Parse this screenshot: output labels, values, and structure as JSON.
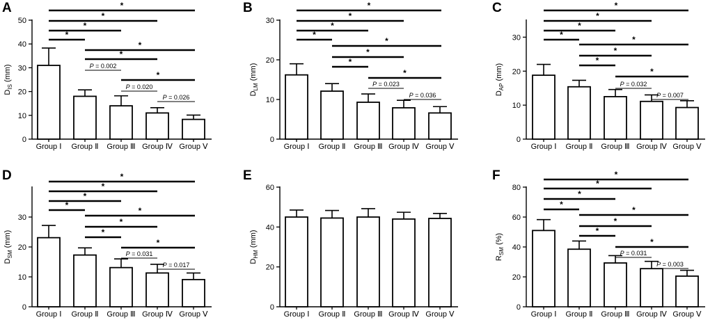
{
  "categories": [
    "Group Ⅰ",
    "Group Ⅱ",
    "Group Ⅲ",
    "Group Ⅳ",
    "Group Ⅴ"
  ],
  "chart_data": [
    {
      "type": "bar",
      "panel_label": "A",
      "ylabel_main": "D",
      "ylabel_sub": "IS",
      "ylabel_unit": " (mm)",
      "ylim": [
        0,
        50
      ],
      "ticks": [
        0,
        10,
        20,
        30,
        40,
        50
      ],
      "values": [
        31,
        18,
        14,
        11,
        8.3
      ],
      "errors": [
        7.3,
        2.7,
        4.2,
        2.2,
        1.8
      ],
      "comparisons": [
        {
          "from": 0,
          "to": 4,
          "label": "*",
          "bold": true
        },
        {
          "from": 0,
          "to": 3,
          "label": "*",
          "bold": true
        },
        {
          "from": 0,
          "to": 2,
          "label": "*",
          "bold": true
        },
        {
          "from": 0,
          "to": 1,
          "label": "*",
          "bold": true
        },
        {
          "from": 1,
          "to": 4,
          "label": "*",
          "bold": true
        },
        {
          "from": 1,
          "to": 3,
          "label": "*",
          "bold": true
        },
        {
          "from": 1,
          "to": 2,
          "label": "P = 0.002",
          "bold": false
        },
        {
          "from": 2,
          "to": 4,
          "label": "*",
          "bold": true
        },
        {
          "from": 2,
          "to": 3,
          "label": "P = 0.020",
          "bold": false
        },
        {
          "from": 3,
          "to": 4,
          "label": "P = 0.026",
          "bold": false
        }
      ]
    },
    {
      "type": "bar",
      "panel_label": "B",
      "ylabel_main": "D",
      "ylabel_sub": "LM",
      "ylabel_unit": " (mm)",
      "ylim": [
        0,
        30
      ],
      "ticks": [
        0,
        10,
        20,
        30
      ],
      "values": [
        16.2,
        12.1,
        9.3,
        7.9,
        6.6
      ],
      "errors": [
        2.8,
        1.9,
        2.1,
        1.9,
        1.6
      ],
      "comparisons": [
        {
          "from": 0,
          "to": 4,
          "label": "*",
          "bold": true
        },
        {
          "from": 0,
          "to": 3,
          "label": "*",
          "bold": true
        },
        {
          "from": 0,
          "to": 2,
          "label": "*",
          "bold": true
        },
        {
          "from": 0,
          "to": 1,
          "label": "*",
          "bold": true
        },
        {
          "from": 1,
          "to": 4,
          "label": "*",
          "bold": true
        },
        {
          "from": 1,
          "to": 3,
          "label": "*",
          "bold": true
        },
        {
          "from": 1,
          "to": 2,
          "label": "*",
          "bold": true
        },
        {
          "from": 2,
          "to": 4,
          "label": "*",
          "bold": true
        },
        {
          "from": 2,
          "to": 3,
          "label": "P = 0.023",
          "bold": false
        },
        {
          "from": 3,
          "to": 4,
          "label": "P = 0.036",
          "bold": false
        }
      ]
    },
    {
      "type": "bar",
      "panel_label": "C",
      "ylabel_main": "D",
      "ylabel_sub": "AP",
      "ylabel_unit": " (mm)",
      "ylim": [
        0,
        35
      ],
      "ticks": [
        0,
        10,
        20,
        30
      ],
      "values": [
        18.8,
        15.4,
        12.5,
        11.1,
        9.3
      ],
      "errors": [
        3.2,
        1.9,
        2.1,
        1.9,
        2
      ],
      "comparisons": [
        {
          "from": 0,
          "to": 4,
          "label": "*",
          "bold": true
        },
        {
          "from": 0,
          "to": 3,
          "label": "*",
          "bold": true
        },
        {
          "from": 0,
          "to": 2,
          "label": "*",
          "bold": true
        },
        {
          "from": 0,
          "to": 1,
          "label": "*",
          "bold": true
        },
        {
          "from": 1,
          "to": 4,
          "label": "*",
          "bold": true
        },
        {
          "from": 1,
          "to": 3,
          "label": "*",
          "bold": true
        },
        {
          "from": 1,
          "to": 2,
          "label": "*",
          "bold": true
        },
        {
          "from": 2,
          "to": 4,
          "label": "*",
          "bold": true
        },
        {
          "from": 2,
          "to": 3,
          "label": "P = 0.032",
          "bold": false
        },
        {
          "from": 3,
          "to": 4,
          "label": "P = 0.007",
          "bold": false
        }
      ]
    },
    {
      "type": "bar",
      "panel_label": "D",
      "ylabel_main": "D",
      "ylabel_sub": "SM",
      "ylabel_unit": " (mm)",
      "ylim": [
        0,
        40
      ],
      "ticks": [
        0,
        10,
        20,
        30
      ],
      "values": [
        23.1,
        17.3,
        13.1,
        11.3,
        9.1
      ],
      "errors": [
        4.1,
        2.4,
        2.9,
        2.9,
        2.2
      ],
      "comparisons": [
        {
          "from": 0,
          "to": 4,
          "label": "*",
          "bold": true
        },
        {
          "from": 0,
          "to": 3,
          "label": "*",
          "bold": true
        },
        {
          "from": 0,
          "to": 2,
          "label": "*",
          "bold": true
        },
        {
          "from": 0,
          "to": 1,
          "label": "*",
          "bold": true
        },
        {
          "from": 1,
          "to": 4,
          "label": "*",
          "bold": true
        },
        {
          "from": 1,
          "to": 3,
          "label": "*",
          "bold": true
        },
        {
          "from": 1,
          "to": 2,
          "label": "*",
          "bold": true
        },
        {
          "from": 2,
          "to": 4,
          "label": "*",
          "bold": true
        },
        {
          "from": 2,
          "to": 3,
          "label": "P = 0.031",
          "bold": false
        },
        {
          "from": 3,
          "to": 4,
          "label": "P = 0.017",
          "bold": false
        }
      ]
    },
    {
      "type": "bar",
      "panel_label": "E",
      "ylabel_main": "D",
      "ylabel_sub": "HM",
      "ylabel_unit": " (mm)",
      "ylim": [
        0,
        60
      ],
      "ticks": [
        0,
        20,
        40,
        60
      ],
      "values": [
        45,
        44.5,
        45,
        44,
        44.3
      ],
      "errors": [
        3.5,
        3.8,
        4.2,
        3.4,
        2.5
      ],
      "comparisons": []
    },
    {
      "type": "bar",
      "panel_label": "F",
      "ylabel_main": "R",
      "ylabel_sub": "SM",
      "ylabel_unit": " (%)",
      "ylim": [
        0,
        80
      ],
      "ticks": [
        0,
        20,
        40,
        60,
        80
      ],
      "values": [
        51,
        38.5,
        29.3,
        25.5,
        20.5
      ],
      "errors": [
        7.3,
        5.5,
        4.9,
        4.9,
        3.9
      ],
      "comparisons": [
        {
          "from": 0,
          "to": 4,
          "label": "*",
          "bold": true
        },
        {
          "from": 0,
          "to": 3,
          "label": "*",
          "bold": true
        },
        {
          "from": 0,
          "to": 2,
          "label": "*",
          "bold": true
        },
        {
          "from": 0,
          "to": 1,
          "label": "*",
          "bold": true
        },
        {
          "from": 1,
          "to": 4,
          "label": "*",
          "bold": true
        },
        {
          "from": 1,
          "to": 3,
          "label": "*",
          "bold": true
        },
        {
          "from": 1,
          "to": 2,
          "label": "*",
          "bold": true
        },
        {
          "from": 2,
          "to": 4,
          "label": "*",
          "bold": true
        },
        {
          "from": 2,
          "to": 3,
          "label": "P = 0.031",
          "bold": false
        },
        {
          "from": 3,
          "to": 4,
          "label": "P = 0.003",
          "bold": false
        }
      ]
    }
  ]
}
